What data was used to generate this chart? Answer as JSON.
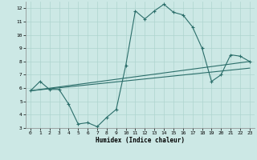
{
  "xlabel": "Humidex (Indice chaleur)",
  "xlim": [
    -0.5,
    23.5
  ],
  "ylim": [
    3,
    12.5
  ],
  "yticks": [
    3,
    4,
    5,
    6,
    7,
    8,
    9,
    10,
    11,
    12
  ],
  "xticks": [
    0,
    1,
    2,
    3,
    4,
    5,
    6,
    7,
    8,
    9,
    10,
    11,
    12,
    13,
    14,
    15,
    16,
    17,
    18,
    19,
    20,
    21,
    22,
    23
  ],
  "bg_color": "#cce8e5",
  "line_color": "#2b6e6a",
  "grid_color": "#aed4cf",
  "line1_x": [
    0,
    1,
    2,
    3,
    4,
    5,
    6,
    7,
    8,
    9,
    10,
    11,
    12,
    13,
    14,
    15,
    16,
    17,
    18,
    19,
    20,
    21,
    22,
    23
  ],
  "line1_y": [
    5.8,
    6.5,
    5.9,
    5.9,
    4.8,
    3.3,
    3.4,
    3.1,
    3.8,
    4.4,
    7.7,
    11.8,
    11.2,
    11.8,
    12.3,
    11.7,
    11.5,
    10.6,
    9.0,
    6.5,
    7.0,
    8.5,
    8.4,
    8.0
  ],
  "line2_x": [
    0,
    23
  ],
  "line2_y": [
    5.8,
    8.0
  ],
  "line3_x": [
    0,
    23
  ],
  "line3_y": [
    5.8,
    7.5
  ]
}
